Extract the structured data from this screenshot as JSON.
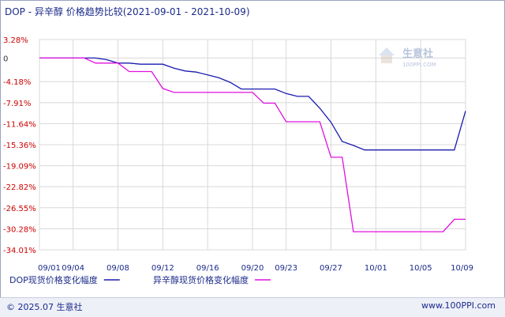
{
  "header": {
    "title": "DOP - 异辛醇 价格趋势比较(2021-09-01 - 2021-10-09)"
  },
  "watermark": {
    "brand": "生意社",
    "url": "100PPI.COM"
  },
  "footer": {
    "copyright": "© 2025.07 生意社",
    "site": "www.100PPI.com"
  },
  "colors": {
    "series_dop": "#1a1ab0",
    "series_2eh": "#e010e0",
    "positive_tick": "#cc0000",
    "negative_tick": "#cc0000",
    "zero_tick": "#333333",
    "axis_text": "#1a2a8a",
    "grid": "#d8d8d8"
  },
  "chart_data": {
    "type": "line",
    "title": "DOP - 异辛醇 价格趋势比较(2021-09-01 - 2021-10-09)",
    "xlabel": "",
    "ylabel": "",
    "x_ticks": [
      "09/01",
      "09/04",
      "09/08",
      "09/12",
      "09/16",
      "09/20",
      "09/23",
      "09/27",
      "10/01",
      "10/05",
      "10/09"
    ],
    "y_ticks": [
      "3.28%",
      "0",
      "-4.18%",
      "-7.91%",
      "-11.64%",
      "-15.36%",
      "-19.09%",
      "-22.82%",
      "-26.55%",
      "-30.28%",
      "-34.01%"
    ],
    "ylim": [
      -34.01,
      3.28
    ],
    "x": [
      "2021-09-01",
      "2021-09-02",
      "2021-09-03",
      "2021-09-04",
      "2021-09-05",
      "2021-09-06",
      "2021-09-07",
      "2021-09-08",
      "2021-09-09",
      "2021-09-10",
      "2021-09-11",
      "2021-09-12",
      "2021-09-13",
      "2021-09-14",
      "2021-09-15",
      "2021-09-16",
      "2021-09-17",
      "2021-09-18",
      "2021-09-19",
      "2021-09-20",
      "2021-09-21",
      "2021-09-22",
      "2021-09-23",
      "2021-09-24",
      "2021-09-25",
      "2021-09-26",
      "2021-09-27",
      "2021-09-28",
      "2021-09-29",
      "2021-09-30",
      "2021-10-01",
      "2021-10-02",
      "2021-10-03",
      "2021-10-04",
      "2021-10-05",
      "2021-10-06",
      "2021-10-07",
      "2021-10-08",
      "2021-10-09"
    ],
    "grid": true,
    "legend_placement": "bottom",
    "series": [
      {
        "name": "DOP现货价格变化幅度",
        "values": [
          0,
          0,
          0,
          0,
          0,
          0,
          -0.3,
          -0.9,
          -0.9,
          -1.1,
          -1.1,
          -1.1,
          -1.8,
          -2.3,
          -2.5,
          -3.0,
          -3.5,
          -4.3,
          -5.5,
          -5.5,
          -5.5,
          -5.5,
          -6.3,
          -6.8,
          -6.8,
          -8.9,
          -11.4,
          -14.8,
          -15.5,
          -16.3,
          -16.3,
          -16.3,
          -16.3,
          -16.3,
          -16.3,
          -16.3,
          -16.3,
          -16.3,
          -9.4
        ]
      },
      {
        "name": "异辛醇现货价格变化幅度",
        "values": [
          0,
          0,
          0,
          0,
          0,
          -0.9,
          -0.9,
          -0.9,
          -2.4,
          -2.4,
          -2.4,
          -5.4,
          -6.1,
          -6.1,
          -6.1,
          -6.1,
          -6.1,
          -6.1,
          -6.1,
          -6.1,
          -8.0,
          -8.0,
          -11.3,
          -11.3,
          -11.3,
          -11.3,
          -17.6,
          -17.6,
          -30.8,
          -30.8,
          -30.8,
          -30.8,
          -30.8,
          -30.8,
          -30.8,
          -30.8,
          -30.8,
          -28.6,
          -28.6
        ]
      }
    ]
  }
}
